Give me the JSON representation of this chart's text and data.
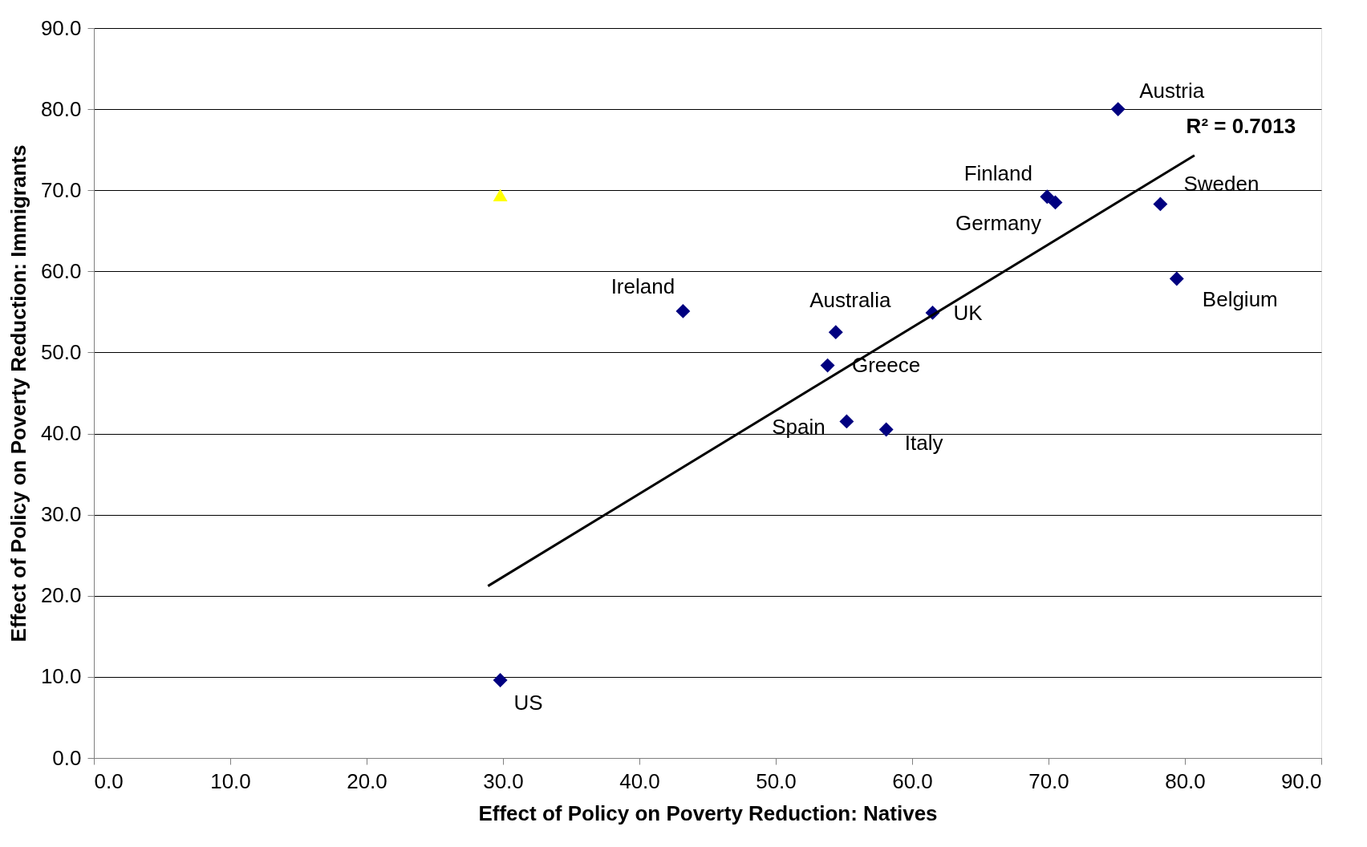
{
  "chart_data": {
    "type": "scatter",
    "xlabel": "Effect of Policy on Poverty Reduction: Natives",
    "ylabel": "Effect of Policy on Poverty Reduction: Immigrants",
    "series": [
      {
        "color": "#000080",
        "marker": "diamond",
        "x": [
          75.1,
          69.9,
          70.5,
          78.2,
          79.4,
          43.2,
          54.4,
          61.5,
          53.8,
          55.2,
          58.1,
          29.8
        ],
        "values": [
          80.0,
          69.2,
          68.5,
          68.3,
          59.1,
          55.1,
          52.5,
          54.9,
          48.4,
          41.5,
          40.5,
          9.6
        ]
      },
      {
        "color": "#ffff00",
        "marker": "triangle",
        "x": [
          29.8
        ],
        "values": [
          69.4
        ]
      },
      {
        "type": "line",
        "name": "R² = 0.7013",
        "color": "#000000",
        "marker": "none",
        "x": [
          28.9,
          80.7
        ],
        "values": [
          21.2,
          74.3
        ]
      }
    ],
    "annotations": [
      {
        "text": "Austria",
        "x": 75.1,
        "y": 80.0
      },
      {
        "text": "Finland",
        "x": 69.9,
        "y": 69.2
      },
      {
        "text": "Germany",
        "x": 70.5,
        "y": 68.5
      },
      {
        "text": "Sweden",
        "x": 78.2,
        "y": 68.3
      },
      {
        "text": "Belgium",
        "x": 79.4,
        "y": 59.1
      },
      {
        "text": "Ireland",
        "x": 43.2,
        "y": 55.1
      },
      {
        "text": "Australia",
        "x": 54.4,
        "y": 52.5
      },
      {
        "text": "UK",
        "x": 61.5,
        "y": 54.9
      },
      {
        "text": "Greece",
        "x": 53.8,
        "y": 48.4
      },
      {
        "text": "Spain",
        "x": 55.2,
        "y": 41.5
      },
      {
        "text": "Italy",
        "x": 58.1,
        "y": 40.5
      },
      {
        "text": "US",
        "x": 29.8,
        "y": 9.6
      }
    ],
    "xlim": [
      0,
      90
    ],
    "ylim": [
      0,
      90
    ],
    "xticks": [
      {
        "value": 0,
        "label": "0.0"
      },
      {
        "value": 10,
        "label": "10.0"
      },
      {
        "value": 20,
        "label": "20.0"
      },
      {
        "value": 30,
        "label": "30.0"
      },
      {
        "value": 40,
        "label": "40.0"
      },
      {
        "value": 50,
        "label": "50.0"
      },
      {
        "value": 60,
        "label": "60.0"
      },
      {
        "value": 70,
        "label": "70.0"
      },
      {
        "value": 80,
        "label": "80.0"
      },
      {
        "value": 90,
        "label": "90.0"
      }
    ],
    "yticks": [
      {
        "value": 0,
        "label": "0.0"
      },
      {
        "value": 10,
        "label": "10.0"
      },
      {
        "value": 20,
        "label": "20.0"
      },
      {
        "value": 30,
        "label": "30.0"
      },
      {
        "value": 40,
        "label": "40.0"
      },
      {
        "value": 50,
        "label": "50.0"
      },
      {
        "value": 60,
        "label": "60.0"
      },
      {
        "value": 70,
        "label": "70.0"
      },
      {
        "value": 80,
        "label": "80.0"
      },
      {
        "value": 90,
        "label": "90.0"
      }
    ],
    "grid": "y"
  }
}
